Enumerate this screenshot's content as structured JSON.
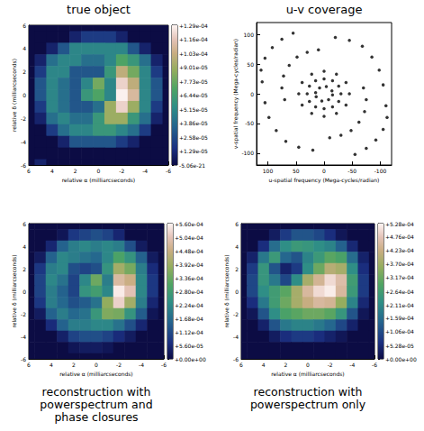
{
  "chart_data": [
    {
      "type": "heatmap",
      "title": "true object",
      "xlabel": "relative α (milliarcseconds)",
      "ylabel": "relative δ (milliarcseconds)",
      "x": [
        6,
        5,
        4,
        3,
        2,
        1,
        0,
        -1,
        -2,
        -3,
        -4,
        -5,
        -6
      ],
      "y": [
        6,
        5,
        4,
        3,
        2,
        1,
        0,
        -1,
        -2,
        -3,
        -4,
        -5,
        -6
      ],
      "values": [
        [
          0,
          0,
          0,
          0,
          0,
          0,
          0,
          0,
          0,
          0,
          0,
          0,
          0
        ],
        [
          0,
          0,
          0,
          0,
          1e-05,
          2e-05,
          2e-05,
          2e-05,
          1e-05,
          0,
          0,
          0,
          0
        ],
        [
          0,
          0,
          1e-05,
          3e-05,
          5e-05,
          5e-05,
          5e-05,
          5e-05,
          5e-05,
          3e-05,
          1e-05,
          0,
          0
        ],
        [
          0,
          1e-05,
          4e-05,
          5e-05,
          5e-05,
          4e-05,
          4e-05,
          5e-05,
          7e-05,
          6e-05,
          4e-05,
          1e-05,
          0
        ],
        [
          0,
          2e-05,
          5e-05,
          5e-05,
          3e-05,
          3e-05,
          3e-05,
          6e-05,
          0.0001,
          8e-05,
          5e-05,
          2e-05,
          0
        ],
        [
          0,
          3e-05,
          5e-05,
          4e-05,
          3e-05,
          5e-05,
          8e-05,
          5e-05,
          0.00012,
          0.0001,
          5e-05,
          3e-05,
          0
        ],
        [
          0,
          3e-05,
          5e-05,
          4e-05,
          3e-05,
          6e-05,
          7e-05,
          5e-05,
          0.000128,
          0.00011,
          5e-05,
          3e-05,
          0
        ],
        [
          0,
          2e-05,
          5e-05,
          4e-05,
          3e-05,
          3e-05,
          4e-05,
          9e-05,
          0.00012,
          9e-05,
          5e-05,
          2e-05,
          0
        ],
        [
          0,
          1e-05,
          4e-05,
          5e-05,
          4e-05,
          4e-05,
          6e-05,
          9e-05,
          9e-05,
          6e-05,
          4e-05,
          1e-05,
          0
        ],
        [
          0,
          0,
          2e-05,
          4e-05,
          5e-05,
          5e-05,
          6e-05,
          6e-05,
          5e-05,
          4e-05,
          2e-05,
          0,
          0
        ],
        [
          0,
          0,
          0,
          1e-05,
          3e-05,
          3e-05,
          3e-05,
          3e-05,
          2e-05,
          1e-05,
          0,
          0,
          0
        ],
        [
          0,
          0,
          0,
          0,
          0,
          0,
          0,
          0,
          0,
          0,
          0,
          0,
          0
        ],
        [
          0,
          1e-05,
          0,
          0,
          0,
          0,
          0,
          0,
          0,
          0,
          0,
          0,
          0
        ]
      ],
      "xlim": [
        6,
        -6
      ],
      "xticks": [
        6,
        4,
        2,
        0,
        -2,
        -4,
        -6
      ],
      "ylim": [
        -6,
        6
      ],
      "yticks": [
        -6,
        -4,
        -2,
        0,
        2,
        4,
        6
      ],
      "colorbar": {
        "range": [
          -5.06e-21,
          0.000129
        ],
        "ticks": [
          {
            "value": 0.000129,
            "label": "+1.29e-04"
          },
          {
            "value": 0.000116,
            "label": "+1.16e-04"
          },
          {
            "value": 0.000103,
            "label": "+1.03e-04"
          },
          {
            "value": 9.01e-05,
            "label": "+9.01e-05"
          },
          {
            "value": 7.73e-05,
            "label": "+7.73e-05"
          },
          {
            "value": 6.44e-05,
            "label": "+6.44e-05"
          },
          {
            "value": 5.15e-05,
            "label": "+5.15e-05"
          },
          {
            "value": 3.86e-05,
            "label": "+3.86e-05"
          },
          {
            "value": 2.58e-05,
            "label": "+2.58e-05"
          },
          {
            "value": 1.29e-05,
            "label": "+1.29e-05"
          },
          {
            "value": -5.06e-21,
            "label": "-5.06e-21"
          }
        ]
      }
    },
    {
      "type": "scatter",
      "title": "u-v coverage",
      "xlabel": "u-spatial frequency (Mega-cycles/radian)",
      "ylabel": "v-spatial frequency (Mega-cycles/radian)",
      "x": [
        30,
        26,
        15,
        0,
        -15,
        -26,
        -30,
        -26,
        -15,
        0,
        15,
        26,
        45,
        39,
        22,
        0,
        -22,
        -39,
        -45,
        -39,
        -22,
        0,
        22,
        39,
        15,
        8,
        -4,
        -14,
        -15,
        -8,
        4,
        14,
        110,
        112,
        105,
        92,
        75,
        55,
        -110,
        -112,
        -105,
        -92,
        -75,
        -55,
        70,
        75,
        72,
        62,
        48,
        30,
        10,
        -70,
        -75,
        -72,
        -62,
        -48,
        -30,
        -10,
        -20,
        -45,
        -68,
        -85,
        -98,
        -105,
        20,
        45,
        68,
        85,
        98,
        105
      ],
      "values": [
        0,
        13,
        22,
        25,
        22,
        13,
        0,
        -13,
        -22,
        -25,
        -22,
        -13,
        0,
        19,
        33,
        38,
        33,
        19,
        0,
        -19,
        -33,
        -38,
        -33,
        -19,
        2,
        10,
        12,
        5,
        -2,
        -10,
        -12,
        -5,
        20,
        40,
        60,
        78,
        92,
        102,
        -20,
        -40,
        -60,
        -78,
        -92,
        -102,
        -10,
        10,
        30,
        48,
        62,
        70,
        74,
        10,
        -10,
        -30,
        -48,
        -62,
        -70,
        -74,
        95,
        90,
        80,
        62,
        40,
        15,
        -95,
        -90,
        -80,
        -62,
        -40,
        -15
      ],
      "color": "#000000",
      "marker": "circle",
      "xlim": [
        120,
        -120
      ],
      "xticks": [
        100,
        50,
        0,
        -50,
        -100
      ],
      "ylim": [
        -120,
        120
      ],
      "yticks": [
        -100,
        -50,
        0,
        50,
        100
      ]
    },
    {
      "type": "heatmap",
      "title": "reconstruction with powerspectrum and phase closures",
      "xlabel": "relative α (milliarcseconds)",
      "ylabel": "relative δ (milliarcseconds)",
      "x": [
        6,
        5,
        4,
        3,
        2,
        1,
        0,
        -1,
        -2,
        -3,
        -4,
        -5,
        -6
      ],
      "y": [
        6,
        5,
        4,
        3,
        2,
        1,
        0,
        -1,
        -2,
        -3,
        -4,
        -5,
        -6
      ],
      "values": [
        [
          0,
          0,
          0,
          0,
          0,
          0,
          0,
          0,
          0,
          0,
          0,
          0,
          0
        ],
        [
          0,
          0,
          0,
          2e-05,
          8e-05,
          0.0001,
          0.00012,
          0.0001,
          5e-05,
          0,
          0,
          0,
          0
        ],
        [
          0,
          0,
          5e-05,
          0.00015,
          0.0002,
          0.00022,
          0.0002,
          0.00022,
          0.0002,
          0.00012,
          3e-05,
          0,
          0
        ],
        [
          0,
          3e-05,
          0.00015,
          0.00022,
          0.0002,
          0.00018,
          0.00016,
          0.00022,
          0.0003,
          0.00025,
          0.00015,
          3e-05,
          0
        ],
        [
          0,
          8e-05,
          0.0002,
          0.00022,
          0.00012,
          0.0001,
          0.00012,
          0.00025,
          0.0004,
          0.00035,
          0.0002,
          6e-05,
          0
        ],
        [
          0,
          0.0001,
          0.00022,
          0.00018,
          0.0001,
          0.00022,
          0.00034,
          0.0002,
          0.00048,
          0.00045,
          0.00022,
          8e-05,
          0
        ],
        [
          0,
          0.0001,
          0.0002,
          0.00015,
          0.0001,
          0.00025,
          0.00028,
          0.00022,
          0.00055,
          0.0005,
          0.00022,
          8e-05,
          0
        ],
        [
          0,
          8e-05,
          0.0002,
          0.00016,
          0.00012,
          0.00014,
          0.00018,
          0.00038,
          0.00052,
          0.0004,
          0.0002,
          5e-05,
          0
        ],
        [
          0,
          3e-05,
          0.00015,
          0.0002,
          0.00016,
          0.00018,
          0.00026,
          0.00036,
          0.00035,
          0.00025,
          0.00014,
          2e-05,
          0
        ],
        [
          0,
          0,
          6e-05,
          0.00015,
          0.0002,
          0.0002,
          0.00022,
          0.00022,
          0.00018,
          0.00012,
          5e-05,
          0,
          0
        ],
        [
          0,
          0,
          0,
          4e-05,
          0.0001,
          0.00012,
          0.00012,
          0.0001,
          6e-05,
          3e-05,
          0,
          0,
          0
        ],
        [
          0,
          0,
          0,
          0,
          2e-05,
          3e-05,
          3e-05,
          2e-05,
          0,
          0,
          0,
          0,
          0
        ],
        [
          0,
          0,
          0,
          0,
          0,
          0,
          0,
          0,
          0,
          0,
          0,
          0,
          0
        ]
      ],
      "xlim": [
        6,
        -6
      ],
      "xticks": [
        6,
        4,
        2,
        0,
        -2,
        -4,
        -6
      ],
      "ylim": [
        -6,
        6
      ],
      "yticks": [
        -6,
        -4,
        -2,
        0,
        2,
        4,
        6
      ],
      "colorbar": {
        "range": [
          0,
          0.00056
        ],
        "ticks": [
          {
            "value": 0.00056,
            "label": "+5.60e-04"
          },
          {
            "value": 0.000504,
            "label": "+5.04e-04"
          },
          {
            "value": 0.000448,
            "label": "+4.48e-04"
          },
          {
            "value": 0.000392,
            "label": "+3.92e-04"
          },
          {
            "value": 0.000336,
            "label": "+3.36e-04"
          },
          {
            "value": 0.00028,
            "label": "+2.80e-04"
          },
          {
            "value": 0.000224,
            "label": "+2.24e-04"
          },
          {
            "value": 0.000168,
            "label": "+1.68e-04"
          },
          {
            "value": 0.000112,
            "label": "+1.12e-04"
          },
          {
            "value": 5.6e-05,
            "label": "+5.60e-05"
          },
          {
            "value": 0,
            "label": "+0.00e+00"
          }
        ]
      }
    },
    {
      "type": "heatmap",
      "title": "reconstruction with powerspectrum only",
      "xlabel": "relative α (milliarcseconds)",
      "ylabel": "relative δ (milliarcseconds)",
      "x": [
        6,
        5,
        4,
        3,
        2,
        1,
        0,
        -1,
        -2,
        -3,
        -4,
        -5,
        -6
      ],
      "y": [
        6,
        5,
        4,
        3,
        2,
        1,
        0,
        -1,
        -2,
        -3,
        -4,
        -5,
        -6
      ],
      "values": [
        [
          0,
          0,
          0,
          0,
          0,
          0,
          0,
          0,
          0,
          0,
          0,
          0,
          0
        ],
        [
          0,
          0,
          0,
          3e-05,
          8e-05,
          0.00012,
          0.00012,
          0.0001,
          6e-05,
          2e-05,
          0,
          0,
          0
        ],
        [
          0,
          0,
          6e-05,
          0.00016,
          0.00022,
          0.00025,
          0.00024,
          0.00022,
          0.0002,
          0.00014,
          5e-05,
          0,
          0
        ],
        [
          0,
          4e-05,
          0.00018,
          0.00025,
          0.00015,
          0.00012,
          0.0002,
          0.00025,
          0.0003,
          0.00028,
          0.00016,
          4e-05,
          0
        ],
        [
          0,
          8e-05,
          0.00024,
          0.00012,
          4e-05,
          8e-05,
          0.00022,
          0.00032,
          0.0004,
          0.00038,
          0.00022,
          6e-05,
          0
        ],
        [
          0,
          0.0001,
          0.00024,
          0.00018,
          0.0001,
          0.00022,
          0.00038,
          0.00044,
          0.0005,
          0.00046,
          0.00026,
          8e-05,
          0
        ],
        [
          0,
          0.0001,
          0.00022,
          0.00026,
          0.0003,
          0.00038,
          0.00045,
          0.0005,
          0.00052,
          0.00045,
          0.00025,
          8e-05,
          0
        ],
        [
          0,
          6e-05,
          0.00018,
          0.00026,
          0.00032,
          0.00038,
          0.00042,
          0.00045,
          0.00044,
          0.00036,
          0.0002,
          5e-05,
          0
        ],
        [
          0,
          2e-05,
          0.00012,
          0.00022,
          0.00028,
          0.0003,
          0.00032,
          0.00032,
          0.0003,
          0.00024,
          0.00012,
          2e-05,
          0
        ],
        [
          0,
          0,
          4e-05,
          0.00012,
          0.00018,
          0.0002,
          0.0002,
          0.00018,
          0.00015,
          0.0001,
          4e-05,
          0,
          0
        ],
        [
          0,
          0,
          0,
          3e-05,
          6e-05,
          8e-05,
          8e-05,
          6e-05,
          4e-05,
          2e-05,
          0,
          0,
          0
        ],
        [
          0,
          0,
          0,
          0,
          0,
          0,
          0,
          0,
          0,
          0,
          0,
          0,
          0
        ],
        [
          0,
          0,
          0,
          0,
          0,
          0,
          0,
          0,
          0,
          0,
          0,
          0,
          0
        ]
      ],
      "xlim": [
        6,
        -6
      ],
      "xticks": [
        6,
        4,
        2,
        0,
        -2,
        -4,
        -6
      ],
      "ylim": [
        -6,
        6
      ],
      "yticks": [
        -6,
        -4,
        -2,
        0,
        2,
        4,
        6
      ],
      "colorbar": {
        "range": [
          0,
          0.000528
        ],
        "ticks": [
          {
            "value": 0.000528,
            "label": "+5.28e-04"
          },
          {
            "value": 0.000476,
            "label": "+4.76e-04"
          },
          {
            "value": 0.000423,
            "label": "+4.23e-04"
          },
          {
            "value": 0.00037,
            "label": "+3.70e-04"
          },
          {
            "value": 0.000317,
            "label": "+3.17e-04"
          },
          {
            "value": 0.000264,
            "label": "+2.64e-04"
          },
          {
            "value": 0.000211,
            "label": "+2.11e-04"
          },
          {
            "value": 0.000159,
            "label": "+1.59e-04"
          },
          {
            "value": 0.000106,
            "label": "+1.06e-04"
          },
          {
            "value": 5.28e-05,
            "label": "+5.28e-05"
          },
          {
            "value": 0,
            "label": "+0.00e+00"
          }
        ]
      }
    }
  ]
}
